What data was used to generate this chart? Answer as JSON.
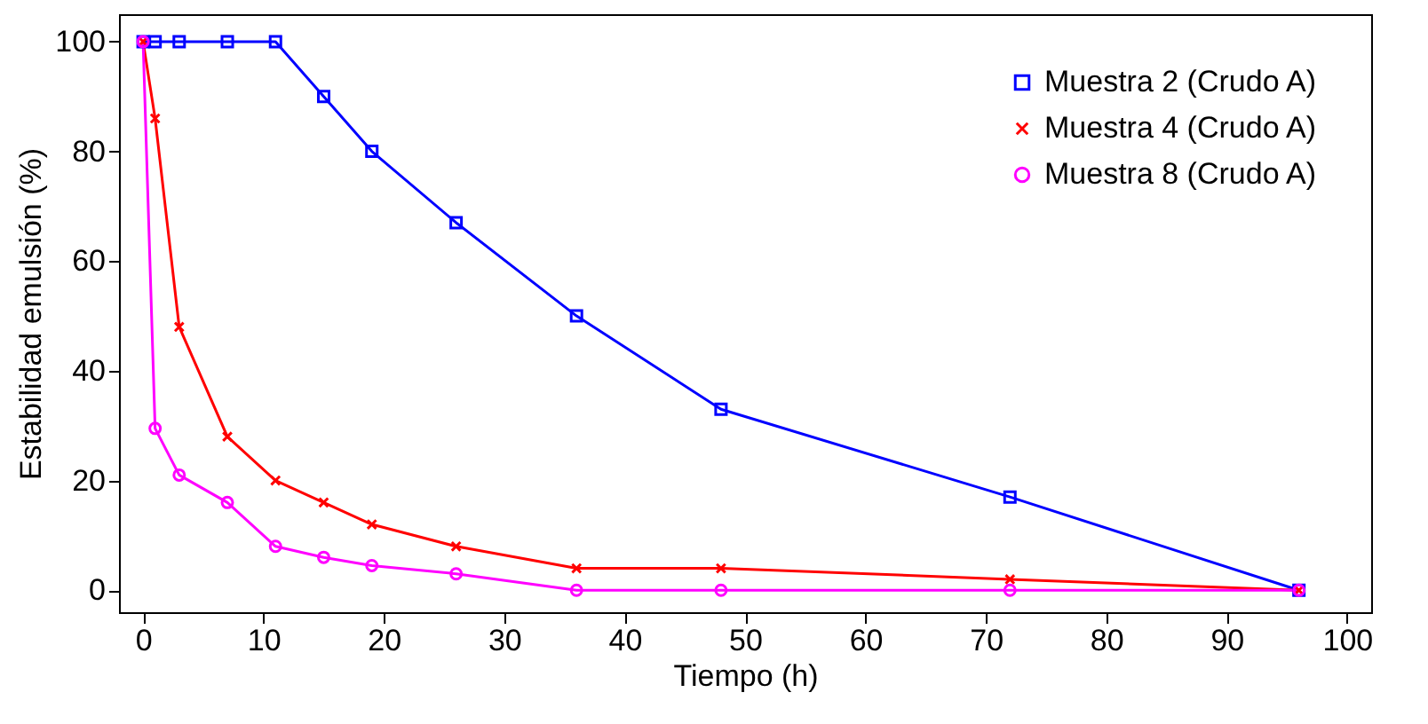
{
  "chart_data": {
    "type": "line",
    "xlabel": "Tiempo (h)",
    "ylabel": "Estabilidad emulsión (%)",
    "xlim": [
      -2,
      102
    ],
    "ylim": [
      -4,
      105
    ],
    "xticks": [
      0,
      10,
      20,
      30,
      40,
      50,
      60,
      70,
      80,
      90,
      100
    ],
    "yticks": [
      0,
      20,
      40,
      60,
      80,
      100
    ],
    "x": [
      0,
      1,
      3,
      7,
      11,
      15,
      19,
      26,
      36,
      48,
      72,
      96
    ],
    "grid": false,
    "legend": "top right",
    "line_style": "solid",
    "series": [
      {
        "name": "Muestra 2 (Crudo A)",
        "color": "#0000ff",
        "marker": "square",
        "values": [
          100,
          100,
          100,
          100,
          100,
          90,
          80,
          67,
          50,
          33,
          17,
          0
        ]
      },
      {
        "name": "Muestra 4 (Crudo A)",
        "color": "#ff0000",
        "marker": "cross",
        "values": [
          100,
          86,
          48,
          28,
          20,
          16,
          12,
          8,
          4,
          4,
          2,
          0
        ]
      },
      {
        "name": "Muestra 8 (Crudo A)",
        "color": "#ff00ff",
        "marker": "circle",
        "values": [
          100,
          29.5,
          21,
          16,
          8,
          6,
          4.5,
          3,
          0,
          0,
          0,
          0
        ]
      }
    ]
  }
}
